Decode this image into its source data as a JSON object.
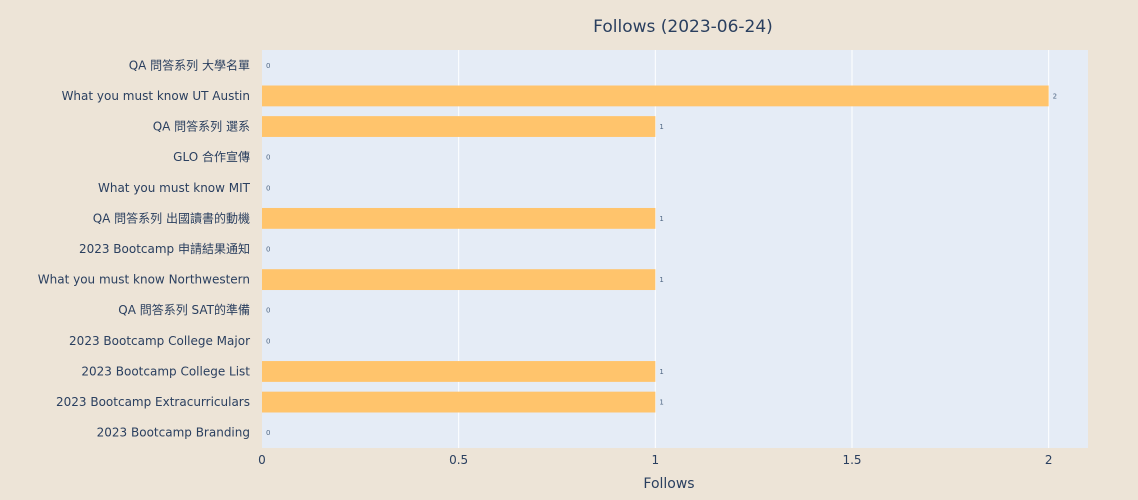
{
  "chart_data": {
    "type": "bar",
    "orientation": "horizontal",
    "title": "Follows (2023-06-24)",
    "xlabel": "Follows",
    "ylabel": "",
    "xlim": [
      0,
      2.1
    ],
    "x_ticks": [
      0,
      0.5,
      1,
      1.5,
      2
    ],
    "x_tick_labels": [
      "0",
      "0.5",
      "1",
      "1.5",
      "2"
    ],
    "grid": true,
    "categories": [
      "QA 問答系列 大學名單",
      "What you must know UT Austin",
      "QA 問答系列 選系",
      "GLO 合作宣傳",
      "What you must know MIT",
      "QA 問答系列 出國讀書的動機",
      "2023 Bootcamp 申請結果通知",
      "What you must know Northwestern",
      "QA 問答系列 SAT的準備",
      "2023 Bootcamp College Major",
      "2023 Bootcamp College List",
      "2023 Bootcamp Extracurriculars",
      "2023 Bootcamp Branding"
    ],
    "values": [
      0,
      2,
      1,
      0,
      0,
      1,
      0,
      1,
      0,
      0,
      1,
      1,
      0
    ],
    "colors": {
      "background": "#ede4d7",
      "plot_bg": "#e5ecf6",
      "grid": "#ffffff",
      "bar": "#ffc46c",
      "text": "#2a3f5f"
    }
  }
}
